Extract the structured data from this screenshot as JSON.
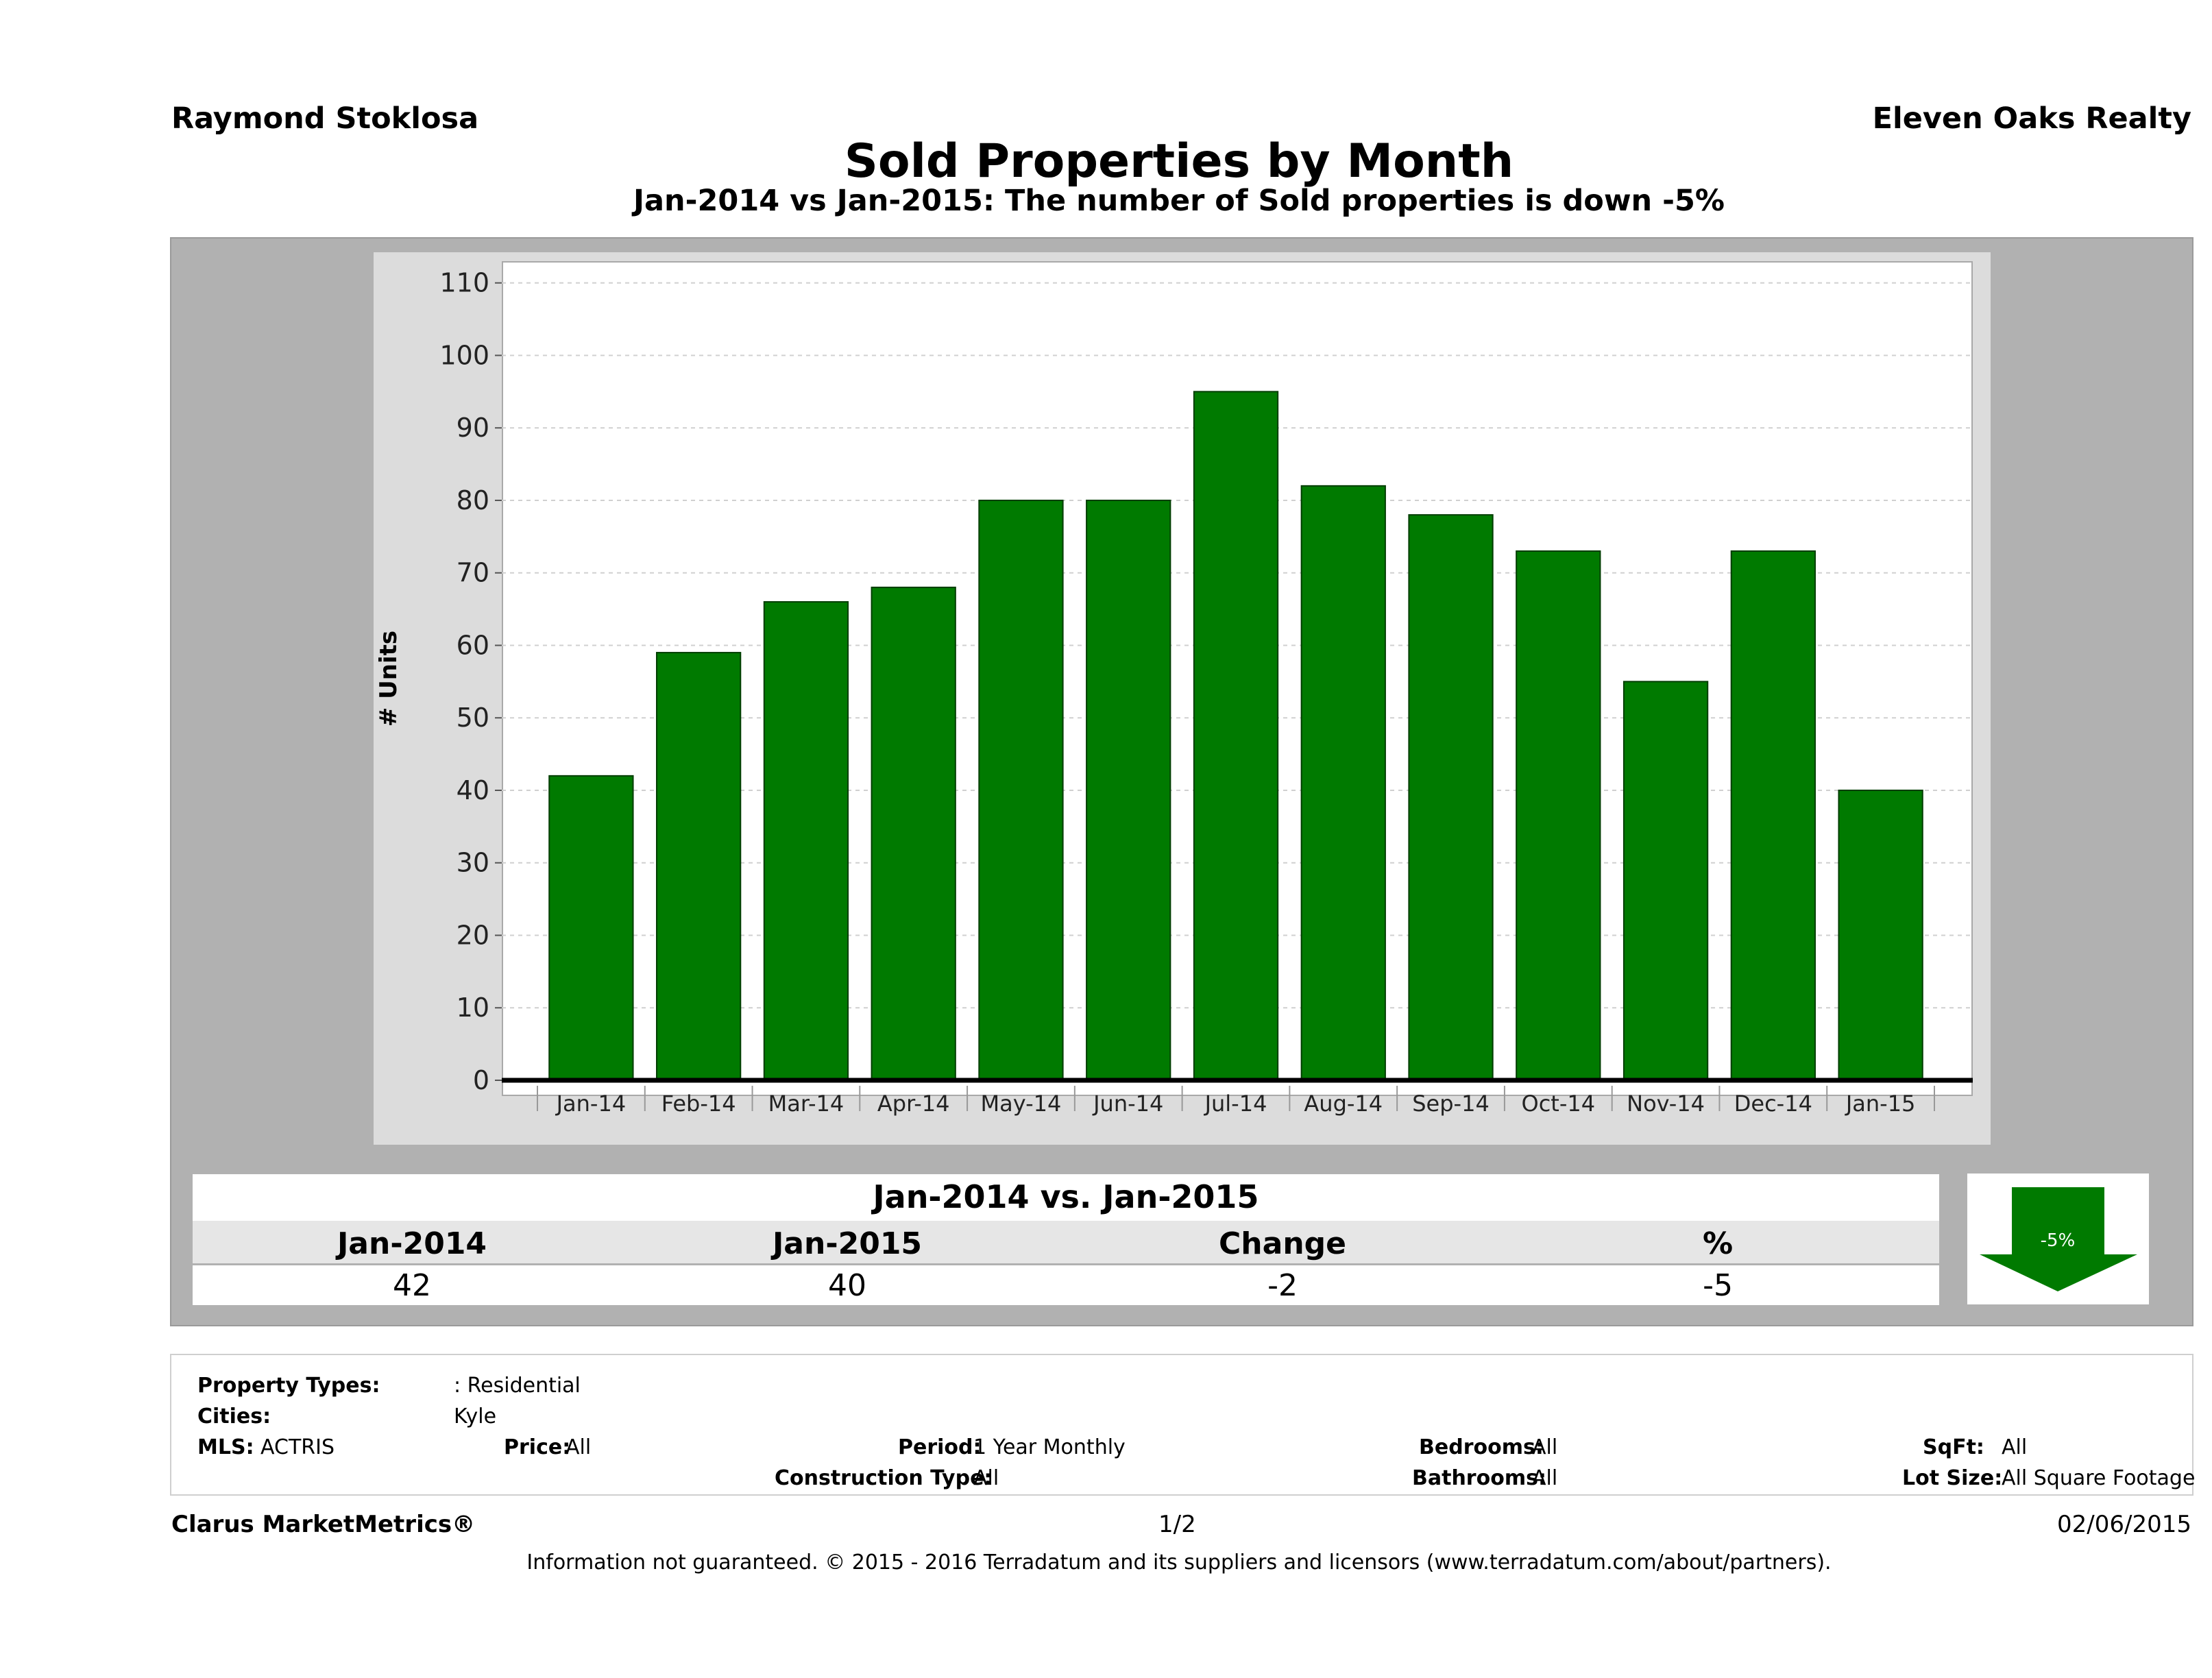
{
  "header": {
    "agent": "Raymond Stoklosa",
    "company": "Eleven Oaks Realty",
    "title": "Sold Properties by Month",
    "subtitle": "Jan-2014 vs Jan-2015: The number of Sold  properties is down -5%"
  },
  "chart_data": {
    "type": "bar",
    "categories": [
      "Jan-14",
      "Feb-14",
      "Mar-14",
      "Apr-14",
      "May-14",
      "Jun-14",
      "Jul-14",
      "Aug-14",
      "Sep-14",
      "Oct-14",
      "Nov-14",
      "Dec-14",
      "Jan-15"
    ],
    "values": [
      42,
      59,
      66,
      68,
      80,
      80,
      95,
      82,
      78,
      73,
      55,
      73,
      40
    ],
    "ylabel": "# Units",
    "ylim": [
      0,
      113
    ],
    "yticks": [
      0,
      10,
      20,
      30,
      40,
      50,
      60,
      70,
      80,
      90,
      100,
      110
    ],
    "grid": true,
    "bar_color": "#007a00"
  },
  "comparison": {
    "title": "Jan-2014 vs. Jan-2015",
    "headers": [
      "Jan-2014",
      "Jan-2015",
      "Change",
      "%"
    ],
    "values": [
      "42",
      "40",
      "-2",
      "-5"
    ],
    "badge": "-5%",
    "badge_color": "#007a00"
  },
  "info": {
    "property_types_label": "Property Types:",
    "property_types_value": ": Residential",
    "cities_label": "Cities:",
    "cities_value": "Kyle",
    "mls_label": "MLS:",
    "mls_value": "ACTRIS",
    "price_label": "Price:",
    "price_value": "All",
    "period_label": "Period:",
    "period_value": "1 Year Monthly",
    "construction_label": "Construction Type:",
    "construction_value": "All",
    "bedrooms_label": "Bedrooms:",
    "bedrooms_value": "All",
    "bathrooms_label": "Bathrooms:",
    "bathrooms_value": "All",
    "sqft_label": "SqFt:",
    "sqft_value": "All",
    "lotsize_label": "Lot Size:",
    "lotsize_value": "All Square Footage"
  },
  "footer": {
    "brand": "Clarus MarketMetrics®",
    "page": "1/2",
    "date": "02/06/2015",
    "disclaimer": "Information not guaranteed. © 2015 - 2016 Terradatum and its suppliers and licensors (www.terradatum.com/about/partners)."
  }
}
